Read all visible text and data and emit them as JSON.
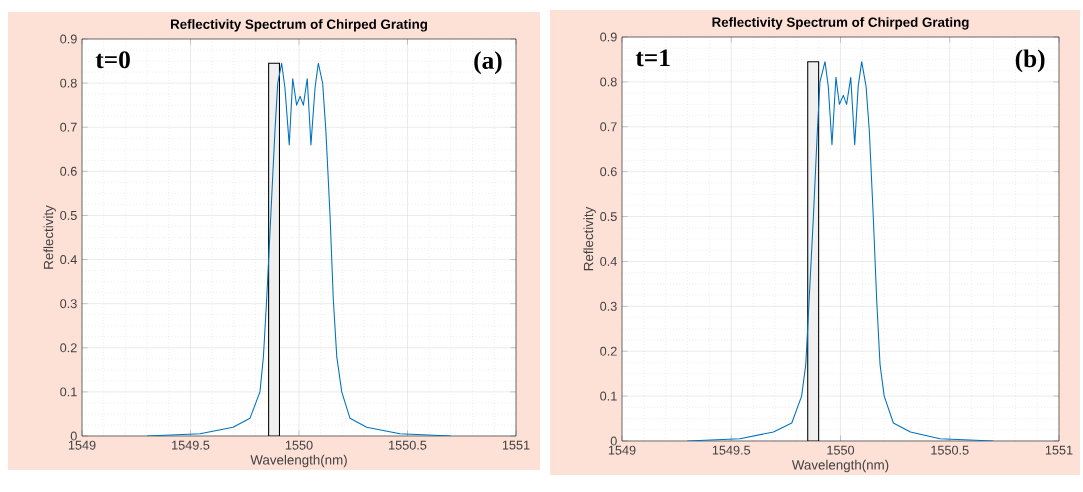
{
  "chart_data": [
    {
      "type": "line",
      "title": "Reflectivity Spectrum of Chirped Grating",
      "xlabel": "Wavelength(nm)",
      "ylabel": "Reflectivity",
      "annotations": [
        "t=0",
        "(a)"
      ],
      "series": [
        {
          "color": "#0072bd",
          "x": [
            1549.3,
            1549.544,
            1549.696,
            1549.774,
            1549.82,
            1549.836,
            1549.851,
            1549.87,
            1549.889,
            1549.902,
            1549.92,
            1549.935,
            1549.955,
            1549.971,
            1549.989,
            1550.005,
            1550.02,
            1550.038,
            1550.055,
            1550.074,
            1550.089,
            1550.109,
            1550.124,
            1550.143,
            1550.158,
            1550.174,
            1550.197,
            1550.235,
            1550.312,
            1550.465,
            1550.7
          ],
          "values": [
            0,
            0.005,
            0.02,
            0.04,
            0.1,
            0.18,
            0.31,
            0.5,
            0.69,
            0.8,
            0.845,
            0.79,
            0.66,
            0.81,
            0.75,
            0.77,
            0.75,
            0.81,
            0.66,
            0.79,
            0.845,
            0.8,
            0.69,
            0.5,
            0.31,
            0.18,
            0.1,
            0.04,
            0.02,
            0.005,
            0
          ]
        }
      ],
      "bands": [
        {
          "axis": "x",
          "from": 1549.86,
          "to": 1549.91
        }
      ],
      "xlim": [
        1549,
        1551
      ],
      "ylim": [
        0,
        0.9
      ],
      "xticks": [
        1549,
        1549.5,
        1550,
        1550.5,
        1551
      ],
      "yticks": [
        0,
        0.1,
        0.2,
        0.3,
        0.4,
        0.5,
        0.6,
        0.7,
        0.8,
        0.9
      ],
      "grid": true
    },
    {
      "type": "line",
      "title": "Reflectivity Spectrum of Chirped Grating",
      "xlabel": "Wavelength(nm)",
      "ylabel": "Reflectivity",
      "annotations": [
        "t=1",
        "(b)"
      ],
      "series": [
        {
          "color": "#0072bd",
          "x": [
            1549.3,
            1549.54,
            1549.693,
            1549.777,
            1549.822,
            1549.841,
            1549.856,
            1549.876,
            1549.894,
            1549.906,
            1549.929,
            1549.944,
            1549.961,
            1549.979,
            1549.995,
            1550.013,
            1550.028,
            1550.047,
            1550.065,
            1550.081,
            1550.097,
            1550.117,
            1550.132,
            1550.15,
            1550.166,
            1550.181,
            1550.2,
            1550.242,
            1550.32,
            1550.455,
            1550.7
          ],
          "values": [
            0,
            0.005,
            0.02,
            0.04,
            0.1,
            0.17,
            0.31,
            0.5,
            0.69,
            0.8,
            0.845,
            0.79,
            0.66,
            0.81,
            0.75,
            0.77,
            0.75,
            0.81,
            0.66,
            0.79,
            0.845,
            0.79,
            0.69,
            0.5,
            0.31,
            0.17,
            0.1,
            0.04,
            0.02,
            0.005,
            0
          ]
        }
      ],
      "bands": [
        {
          "axis": "x",
          "from": 1549.85,
          "to": 1549.9
        }
      ],
      "xlim": [
        1549,
        1551
      ],
      "ylim": [
        0,
        0.9
      ],
      "xticks": [
        1549,
        1549.5,
        1550,
        1550.5,
        1551
      ],
      "yticks": [
        0,
        0.1,
        0.2,
        0.3,
        0.4,
        0.5,
        0.6,
        0.7,
        0.8,
        0.9
      ],
      "grid": true
    }
  ]
}
